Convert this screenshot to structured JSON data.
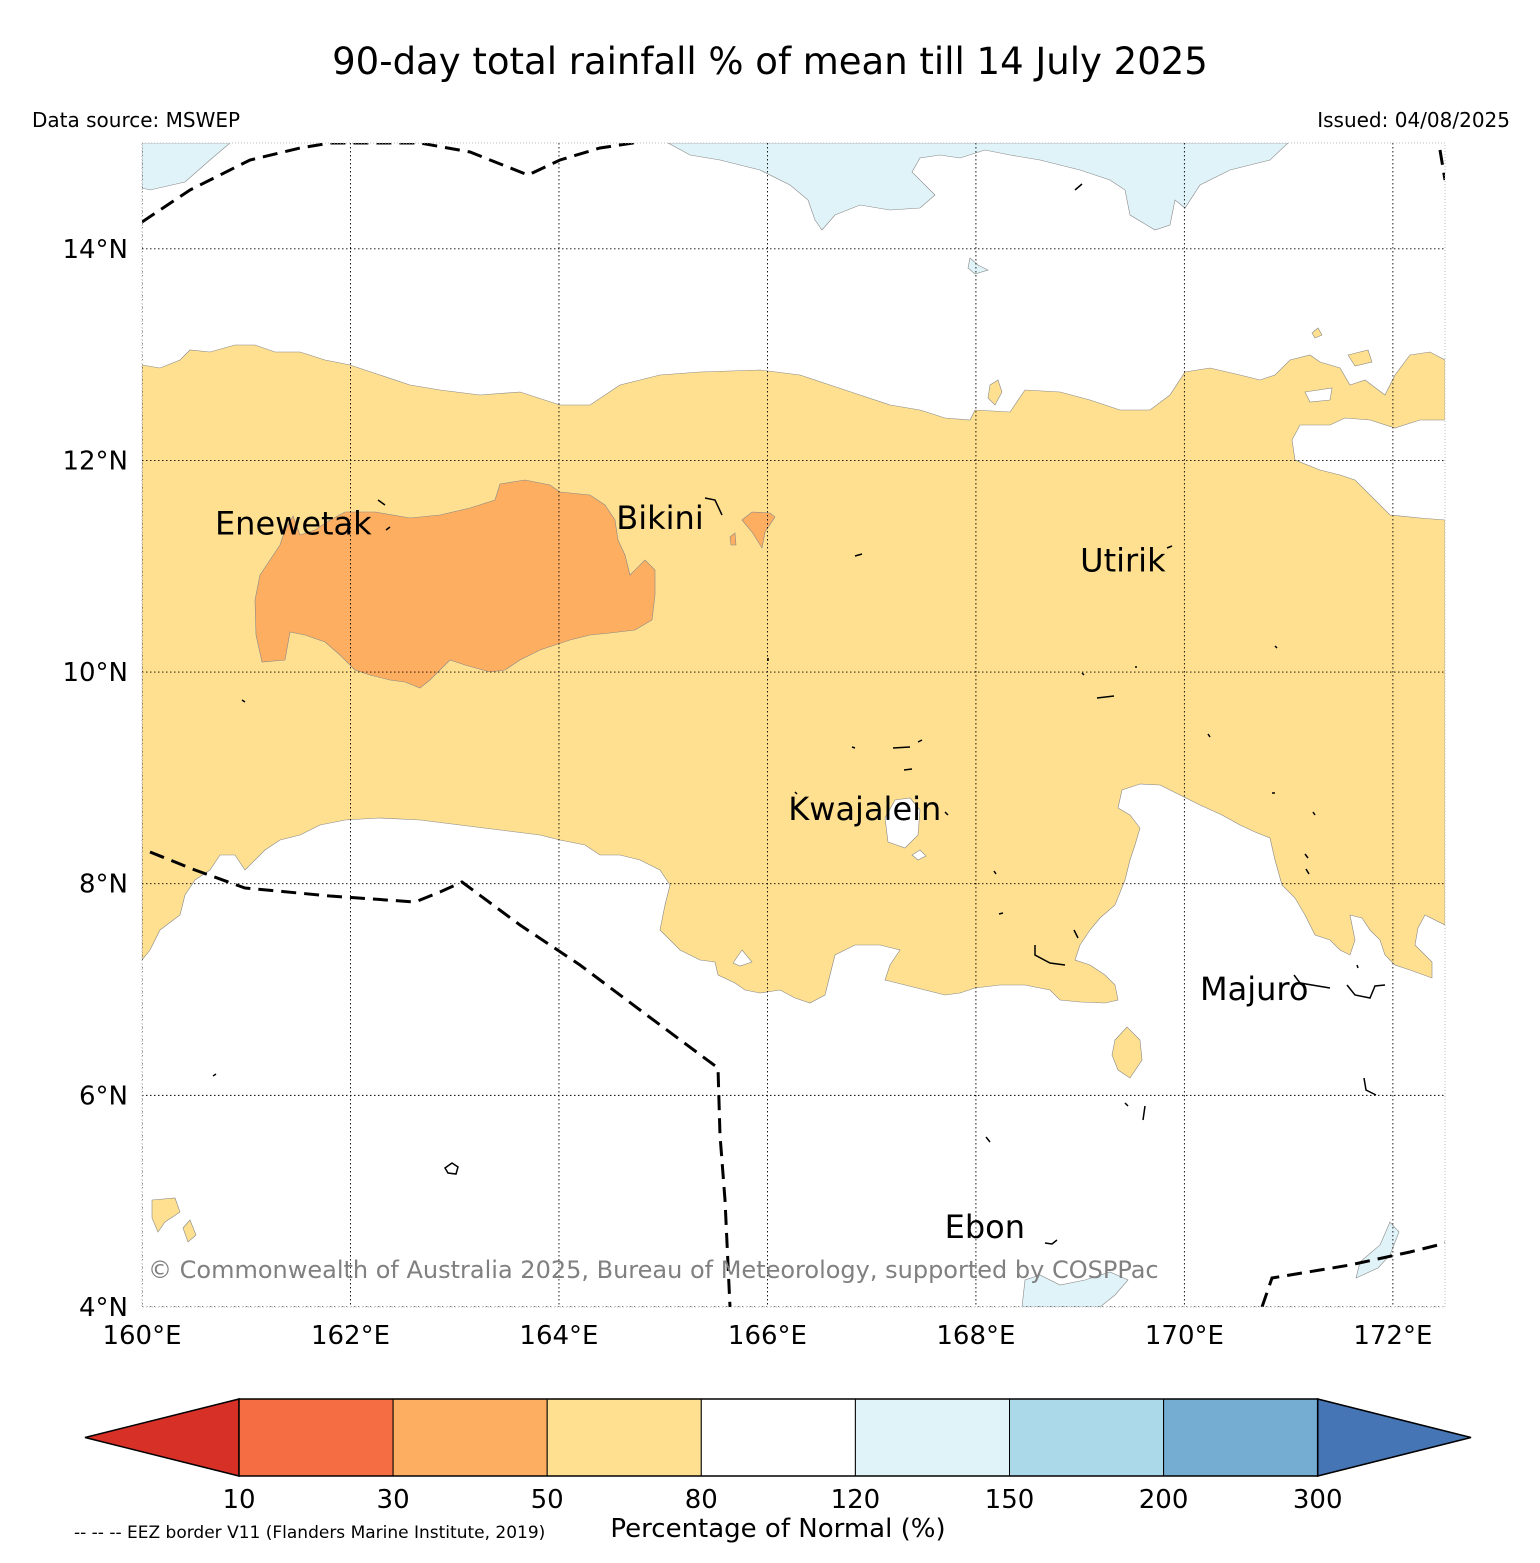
{
  "title": "90-day total rainfall % of mean till 14 July 2025",
  "data_source": "Data source: MSWEP",
  "issued": "Issued: 04/08/2025",
  "copyright": "© Commonwealth of Australia 2025, Bureau of Meteorology, supported by COSPPac",
  "eez_note": "-- -- -- EEZ border V11 (Flanders Marine Institute, 2019)",
  "map": {
    "lon_range": [
      160,
      172.5
    ],
    "lat_range": [
      4,
      15
    ],
    "lon_ticks": [
      {
        "value": 160,
        "label": "160°E"
      },
      {
        "value": 162,
        "label": "162°E"
      },
      {
        "value": 164,
        "label": "164°E"
      },
      {
        "value": 166,
        "label": "166°E"
      },
      {
        "value": 168,
        "label": "168°E"
      },
      {
        "value": 170,
        "label": "170°E"
      },
      {
        "value": 172,
        "label": "172°E"
      }
    ],
    "lat_ticks": [
      {
        "value": 4,
        "label": "4°N"
      },
      {
        "value": 6,
        "label": "6°N"
      },
      {
        "value": 8,
        "label": "8°N"
      },
      {
        "value": 10,
        "label": "10°N"
      },
      {
        "value": 12,
        "label": "12°N"
      },
      {
        "value": 14,
        "label": "14°N"
      }
    ],
    "places": [
      {
        "name": "Enewetak",
        "lon": 160.7,
        "lat": 11.3
      },
      {
        "name": "Bikini",
        "lon": 164.55,
        "lat": 11.35
      },
      {
        "name": "Utirik",
        "lon": 169.0,
        "lat": 10.95
      },
      {
        "name": "Kwajalein",
        "lon": 166.2,
        "lat": 8.6
      },
      {
        "name": "Majuro",
        "lon": 170.15,
        "lat": 6.9
      },
      {
        "name": "Ebon",
        "lon": 167.7,
        "lat": 4.65
      }
    ]
  },
  "legend": {
    "title": "Percentage of Normal (%)",
    "bounds": [
      "10",
      "30",
      "50",
      "80",
      "120",
      "150",
      "200",
      "300"
    ],
    "under_color": "#d73027",
    "over_color": "#4575b4",
    "colors": [
      "#f46d43",
      "#fdae61",
      "#fee090",
      "#ffffff",
      "#e0f3f8",
      "#abd9e9",
      "#74add1"
    ]
  }
}
